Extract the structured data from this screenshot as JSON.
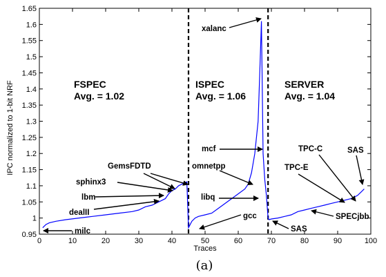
{
  "chart_data": {
    "type": "line",
    "ylabel": "IPC normalized to 1-bit NRF",
    "xlabel": "Traces",
    "caption": "(a)",
    "xlim": [
      0,
      100
    ],
    "ylim": [
      0.95,
      1.65
    ],
    "xticks": [
      "0",
      "10",
      "20",
      "30",
      "40",
      "50",
      "60",
      "70",
      "80",
      "90",
      "100"
    ],
    "yticks": [
      "0.95",
      "1",
      "1.05",
      "1.1",
      "1.15",
      "1.2",
      "1.25",
      "1.3",
      "1.35",
      "1.4",
      "1.45",
      "1.5",
      "1.55",
      "1.6",
      "1.65"
    ],
    "line_color": "#0000ff",
    "dividers": [
      45,
      69
    ],
    "regions": [
      {
        "name": "FSPEC",
        "avg": "Avg. = 1.02"
      },
      {
        "name": "ISPEC",
        "avg": "Avg. = 1.06"
      },
      {
        "name": "SERVER",
        "avg": "Avg. = 1.04"
      }
    ],
    "annotations": [
      "milc",
      "dealII",
      "lbm",
      "sphinx3",
      "GemsFDTD",
      "gcc",
      "libq",
      "omnetpp",
      "mcf",
      "xalanc",
      "SAS",
      "SPECjbb",
      "TPC-E",
      "TPC-C",
      "SAS"
    ],
    "series": [
      {
        "x": [
          1,
          2,
          3,
          5,
          8,
          12,
          16,
          20,
          24,
          28,
          30,
          32,
          34,
          36,
          38,
          39,
          40,
          41,
          42,
          43,
          44,
          44.5,
          45,
          46,
          47,
          48,
          50,
          52,
          54,
          56,
          58,
          60,
          62,
          63,
          64,
          65,
          66,
          66.5,
          67,
          67.5,
          68,
          68.5,
          69,
          69.3,
          70,
          72,
          74,
          76,
          78,
          80,
          82,
          84,
          86,
          88,
          90,
          92,
          94,
          95,
          96,
          97,
          98
        ],
        "y": [
          0.97,
          0.98,
          0.985,
          0.99,
          0.995,
          1.0,
          1.005,
          1.01,
          1.015,
          1.02,
          1.025,
          1.035,
          1.04,
          1.05,
          1.06,
          1.075,
          1.085,
          1.09,
          1.1,
          1.105,
          1.11,
          1.112,
          0.97,
          0.99,
          1.0,
          1.005,
          1.01,
          1.015,
          1.03,
          1.045,
          1.06,
          1.075,
          1.09,
          1.105,
          1.14,
          1.2,
          1.3,
          1.45,
          1.61,
          1.2,
          1.12,
          1.07,
          1.0,
          0.995,
          0.997,
          1.0,
          1.005,
          1.01,
          1.02,
          1.025,
          1.03,
          1.035,
          1.04,
          1.045,
          1.05,
          1.055,
          1.06,
          1.065,
          1.07,
          1.08,
          1.09
        ]
      }
    ]
  }
}
